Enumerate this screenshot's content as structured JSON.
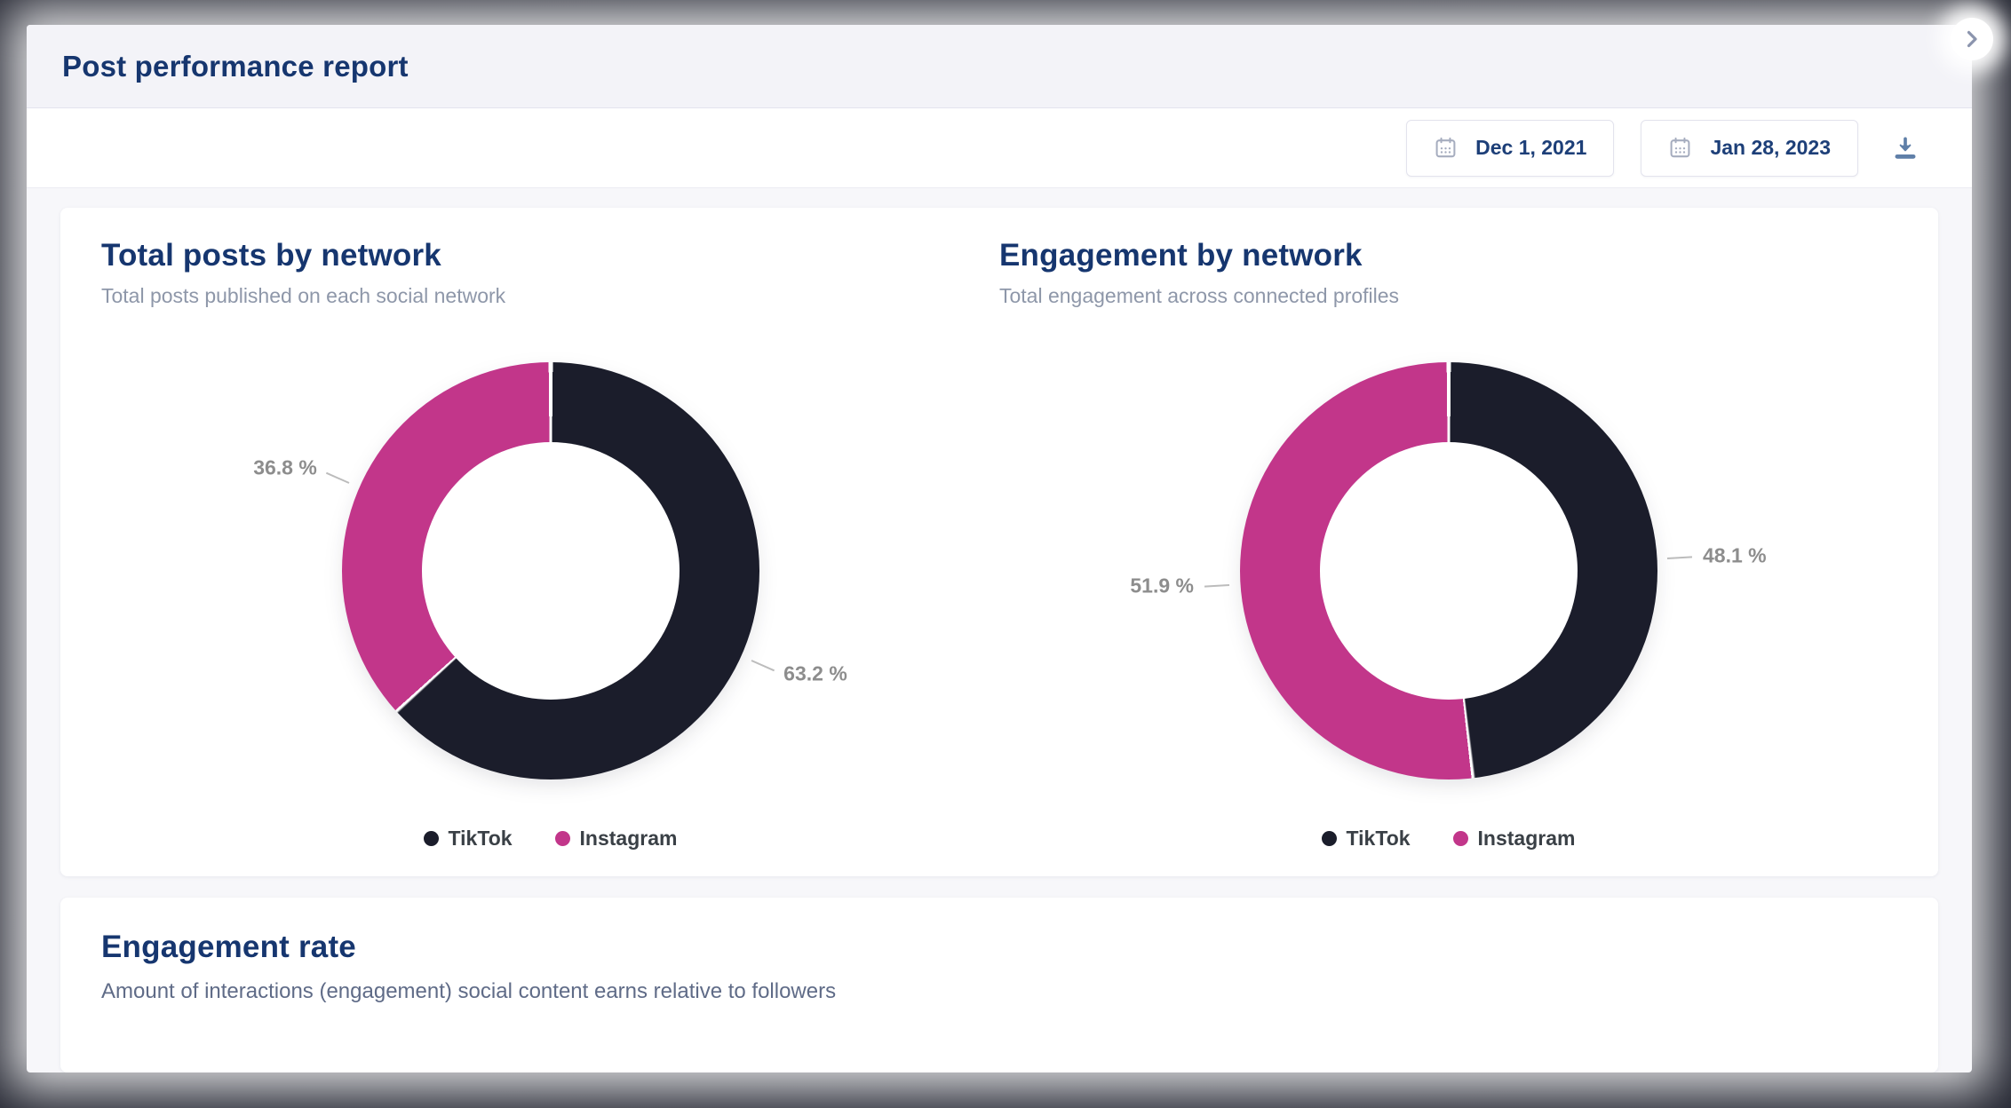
{
  "window": {
    "title": "Post performance report"
  },
  "toolbar": {
    "date_from": "Dec 1, 2021",
    "date_to": "Jan 28, 2023"
  },
  "icons": {
    "calendar": "calendar-icon",
    "download": "download-icon",
    "close_chevron": "chevron-right-icon"
  },
  "colors": {
    "tiktok": "#1b1d2b",
    "instagram": "#c2368a",
    "heading_navy": "#16366f",
    "percent_label_gray": "#8d8d8d",
    "modal_header_bg": "#f3f3f8",
    "page_bg": "#272a36"
  },
  "engagement_rate_section": {
    "title": "Engagement rate",
    "subtitle": "Amount of interactions (engagement) social content earns relative to followers"
  },
  "chart_data": [
    {
      "type": "pie",
      "donut": true,
      "title": "Total posts by network",
      "subtitle": "Total posts published on each social network",
      "labels": [
        "TikTok",
        "Instagram"
      ],
      "values": [
        63.2,
        36.8
      ],
      "value_labels": [
        "63.2 %",
        "36.8 %"
      ],
      "colors": [
        "#1b1d2b",
        "#c2368a"
      ],
      "unit": "%",
      "start_angle": 0,
      "direction": "clockwise",
      "legend_position": "bottom"
    },
    {
      "type": "pie",
      "donut": true,
      "title": "Engagement by network",
      "subtitle": "Total engagement across connected profiles",
      "labels": [
        "TikTok",
        "Instagram"
      ],
      "values": [
        48.1,
        51.9
      ],
      "value_labels": [
        "48.1 %",
        "51.9 %"
      ],
      "colors": [
        "#1b1d2b",
        "#c2368a"
      ],
      "unit": "%",
      "start_angle": 0,
      "direction": "clockwise",
      "legend_position": "bottom"
    }
  ]
}
